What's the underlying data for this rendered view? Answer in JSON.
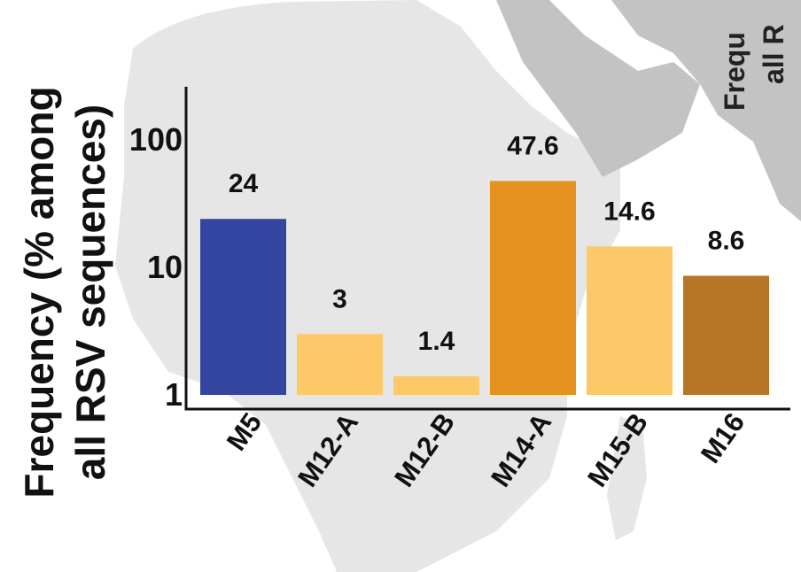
{
  "chart_data": {
    "type": "bar",
    "ylabel_line1": "Frequency (% among",
    "ylabel_line2": "all RSV sequences)",
    "yscale": "log",
    "ylim": [
      1,
      150
    ],
    "yticks": [
      {
        "value": 1,
        "label": "1"
      },
      {
        "value": 10,
        "label": "10"
      },
      {
        "value": 100,
        "label": "100"
      }
    ],
    "categories": [
      "M5",
      "M12-A",
      "M12-B",
      "M14-A",
      "M15-B",
      "M16"
    ],
    "values": [
      24,
      3,
      1.4,
      47.6,
      14.6,
      8.6
    ],
    "value_labels": [
      "24",
      "3",
      "1.4",
      "47.6",
      "14.6",
      "8.6"
    ],
    "colors": [
      "#3345a0",
      "#fcc868",
      "#fcc868",
      "#e5921f",
      "#fcc868",
      "#b77526"
    ],
    "grid": false
  },
  "right_panel": {
    "label_line1": "Frequ",
    "label_line2": "all R"
  },
  "background": {
    "map_light": "#e6e6e6",
    "map_dark": "#c3c3c3"
  }
}
